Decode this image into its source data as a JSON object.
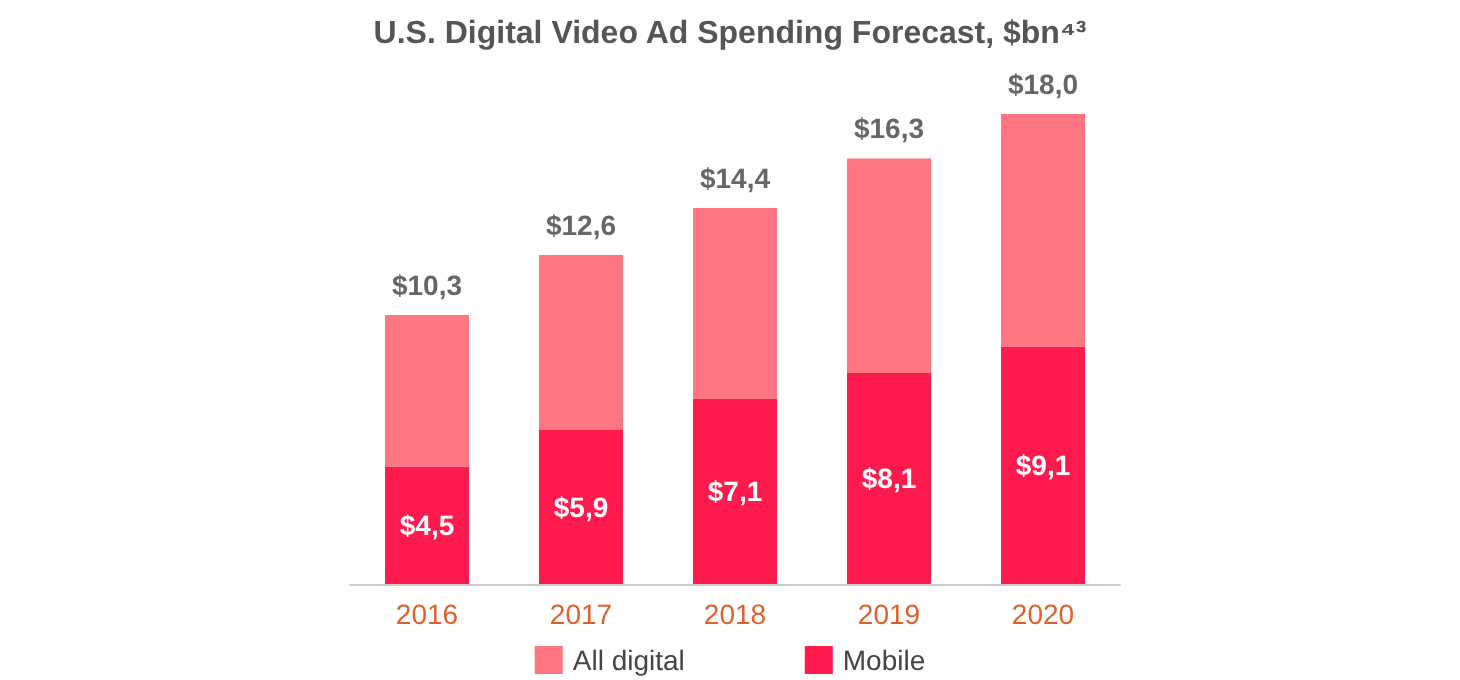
{
  "chart_data": {
    "type": "bar",
    "title": "U.S. Digital Video Ad Spending Forecast, $bn⁴³",
    "categories": [
      "2016",
      "2017",
      "2018",
      "2019",
      "2020"
    ],
    "stacked": true,
    "series": [
      {
        "name": "Mobile",
        "color": "#ff1a4e",
        "values": [
          4.5,
          5.9,
          7.1,
          8.1,
          9.1
        ],
        "value_labels": [
          "$4,5",
          "$5,9",
          "$7,1",
          "$8,1",
          "$9,1"
        ]
      },
      {
        "name": "All digital",
        "color": "#ff7680",
        "values": [
          5.8,
          6.7,
          7.3,
          8.2,
          8.9
        ]
      }
    ],
    "totals": [
      "$10,3",
      "$12,6",
      "$14,4",
      "$16,3",
      "$18,0"
    ],
    "legend": "bottom"
  }
}
